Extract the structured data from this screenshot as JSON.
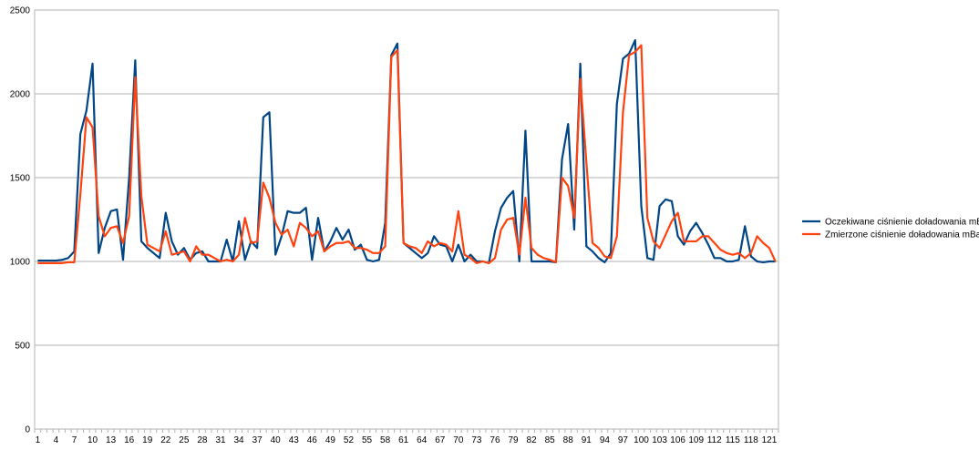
{
  "chart_data": {
    "type": "line",
    "title": "",
    "xlabel": "",
    "ylabel": "",
    "ylim": [
      0,
      2500
    ],
    "yticks": [
      0,
      500,
      1000,
      1500,
      2000,
      2500
    ],
    "grid": "horizontal",
    "legend_position": "right",
    "x": [
      1,
      2,
      3,
      4,
      5,
      6,
      7,
      8,
      9,
      10,
      11,
      12,
      13,
      14,
      15,
      16,
      17,
      18,
      19,
      20,
      21,
      22,
      23,
      24,
      25,
      26,
      27,
      28,
      29,
      30,
      31,
      32,
      33,
      34,
      35,
      36,
      37,
      38,
      39,
      40,
      41,
      42,
      43,
      44,
      45,
      46,
      47,
      48,
      49,
      50,
      51,
      52,
      53,
      54,
      55,
      56,
      57,
      58,
      59,
      60,
      61,
      62,
      63,
      64,
      65,
      66,
      67,
      68,
      69,
      70,
      71,
      72,
      73,
      74,
      75,
      76,
      77,
      78,
      79,
      80,
      81,
      82,
      83,
      84,
      85,
      86,
      87,
      88,
      89,
      90,
      91,
      92,
      93,
      94,
      95,
      96,
      97,
      98,
      99,
      100,
      101,
      102,
      103,
      104,
      105,
      106,
      107,
      108,
      109,
      110,
      111,
      112,
      113,
      114,
      115,
      116,
      117,
      118,
      119,
      120,
      121,
      122
    ],
    "x_tick_labels": [
      "1",
      "4",
      "7",
      "10",
      "13",
      "16",
      "19",
      "22",
      "25",
      "28",
      "31",
      "34",
      "37",
      "40",
      "43",
      "46",
      "49",
      "52",
      "55",
      "58",
      "61",
      "64",
      "67",
      "70",
      "73",
      "76",
      "79",
      "82",
      "85",
      "88",
      "91",
      "94",
      "97",
      "100",
      "103",
      "106",
      "109",
      "112",
      "115",
      "118",
      "121"
    ],
    "series": [
      {
        "name": "Oczekiwane ciśnienie doładowania mBa",
        "color": "#004586",
        "values": [
          1005,
          1005,
          1005,
          1005,
          1010,
          1020,
          1060,
          1760,
          1900,
          2180,
          1050,
          1200,
          1300,
          1310,
          1010,
          1500,
          2200,
          1120,
          1080,
          1050,
          1020,
          1290,
          1120,
          1040,
          1080,
          1010,
          1050,
          1060,
          1000,
          1000,
          1000,
          1130,
          1000,
          1240,
          1010,
          1120,
          1080,
          1860,
          1890,
          1040,
          1150,
          1300,
          1290,
          1290,
          1320,
          1010,
          1260,
          1060,
          1120,
          1200,
          1130,
          1190,
          1070,
          1100,
          1010,
          1000,
          1010,
          1230,
          2230,
          2300,
          1110,
          1080,
          1050,
          1020,
          1050,
          1150,
          1100,
          1090,
          1000,
          1100,
          1000,
          1040,
          1000,
          1000,
          990,
          1180,
          1320,
          1380,
          1420,
          1000,
          1780,
          1000,
          1000,
          1000,
          1000,
          995,
          1610,
          1820,
          1190,
          2180,
          1090,
          1060,
          1020,
          995,
          1050,
          1940,
          2210,
          2240,
          2320,
          1330,
          1020,
          1010,
          1330,
          1370,
          1360,
          1150,
          1100,
          1180,
          1230,
          1170,
          1100,
          1020,
          1020,
          1000,
          1000,
          1010,
          1210,
          1030,
          1000,
          995,
          1000,
          1000
        ]
      },
      {
        "name": "Zmierzone ciśnienie doładowania mBar",
        "color": "#ff420e",
        "values": [
          990,
          990,
          990,
          990,
          990,
          995,
          995,
          1400,
          1860,
          1800,
          1270,
          1150,
          1200,
          1210,
          1110,
          1270,
          2100,
          1390,
          1100,
          1080,
          1060,
          1180,
          1040,
          1050,
          1060,
          1000,
          1090,
          1040,
          1040,
          1020,
          1000,
          1010,
          1000,
          1040,
          1260,
          1110,
          1120,
          1470,
          1380,
          1230,
          1160,
          1190,
          1090,
          1230,
          1200,
          1150,
          1180,
          1060,
          1090,
          1110,
          1110,
          1120,
          1080,
          1080,
          1070,
          1050,
          1050,
          1090,
          2220,
          2260,
          1110,
          1090,
          1080,
          1050,
          1120,
          1090,
          1110,
          1100,
          1060,
          1300,
          1040,
          1020,
          990,
          1000,
          990,
          1020,
          1190,
          1250,
          1260,
          1040,
          1380,
          1080,
          1040,
          1020,
          1010,
          995,
          1500,
          1450,
          1260,
          2090,
          1590,
          1110,
          1080,
          1030,
          1020,
          1150,
          1890,
          2230,
          2250,
          2290,
          1260,
          1120,
          1080,
          1160,
          1240,
          1290,
          1120,
          1120,
          1120,
          1150,
          1150,
          1110,
          1070,
          1050,
          1040,
          1050,
          1020,
          1050,
          1150,
          1110,
          1080,
          1000
        ]
      }
    ]
  }
}
